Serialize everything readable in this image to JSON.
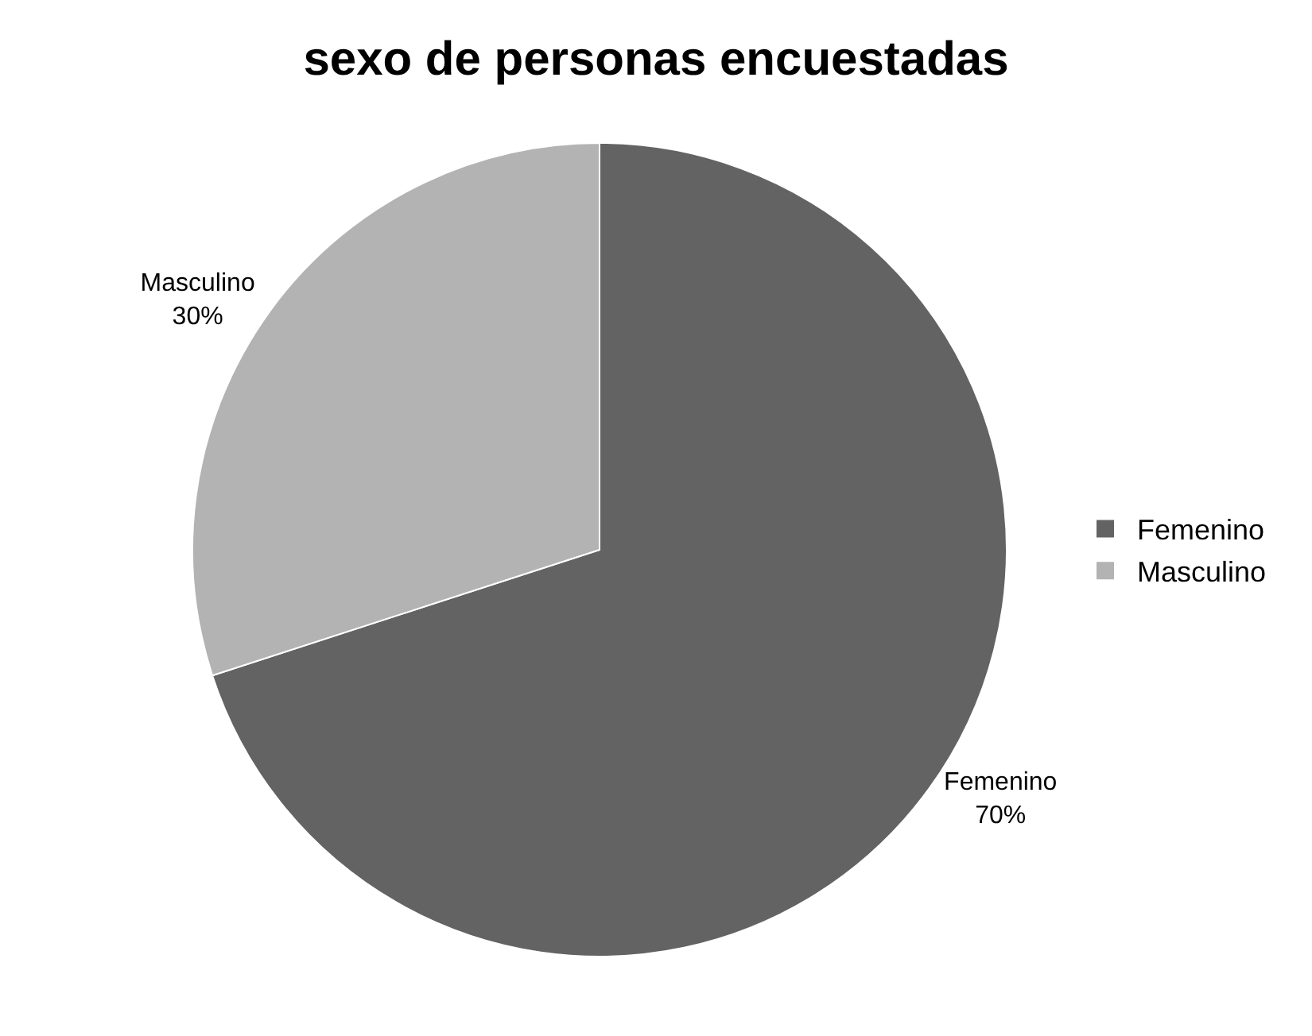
{
  "chart_data": {
    "type": "pie",
    "title": "sexo de personas encuestadas",
    "categories": [
      "Femenino",
      "Masculino"
    ],
    "values": [
      70,
      30
    ],
    "value_labels": [
      "70%",
      "30%"
    ],
    "colors": [
      "#636363",
      "#b3b3b3"
    ],
    "legend": "right"
  }
}
